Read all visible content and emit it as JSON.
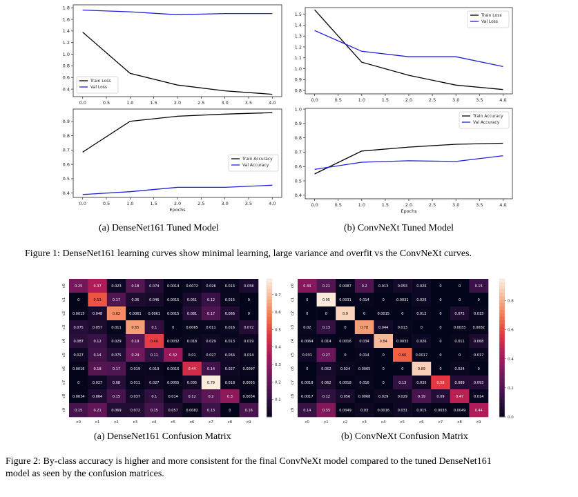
{
  "figure1": {
    "sub_a": "(a) DenseNet161 Tuned Model",
    "sub_b": "(b) ConvNeXt Tuned Model",
    "caption": "Figure 1: DenseNet161 learning curves show minimal learning, large variance and overfit vs the ConvNeXt curves."
  },
  "figure2": {
    "sub_a": "(a) DenseNet161 Confusion Matrix",
    "sub_b": "(b) ConvNeXt Confusion Matrix",
    "caption_line1": "Figure 2: By-class accuracy is higher and more consistent for the final ConvNeXt model compared to the tuned DenseNet161",
    "caption_line2": "model as seen by the confusion matrices."
  },
  "colors": {
    "train": "#000000",
    "val": "#1f1fd6"
  },
  "chart_data": [
    {
      "id": "dn-loss",
      "type": "line",
      "xlabel": "",
      "ylabel": "",
      "xlim": [
        -0.2,
        4.2
      ],
      "ylim": [
        0.27,
        1.85
      ],
      "xticks": [
        0.0,
        0.5,
        1.0,
        1.5,
        2.0,
        2.5,
        3.0,
        3.5,
        4.0
      ],
      "yticks": [
        0.4,
        0.6,
        0.8,
        1.0,
        1.2,
        1.4,
        1.6,
        1.8
      ],
      "legend_position": "lower-left",
      "x": [
        0,
        1,
        2,
        3,
        4
      ],
      "series": [
        {
          "name": "Train Loss",
          "values": [
            1.38,
            0.67,
            0.47,
            0.37,
            0.31
          ]
        },
        {
          "name": "Val Loss",
          "values": [
            1.76,
            1.73,
            1.68,
            1.7,
            1.7
          ]
        }
      ]
    },
    {
      "id": "cx-loss",
      "type": "line",
      "xlabel": "",
      "ylabel": "",
      "xlim": [
        -0.2,
        4.2
      ],
      "ylim": [
        0.77,
        1.56
      ],
      "xticks": [
        0.0,
        0.5,
        1.0,
        1.5,
        2.0,
        2.5,
        3.0,
        3.5,
        4.0
      ],
      "yticks": [
        0.8,
        0.9,
        1.0,
        1.1,
        1.2,
        1.3,
        1.4,
        1.5
      ],
      "legend_position": "upper-right",
      "x": [
        0,
        1,
        2,
        3,
        4
      ],
      "series": [
        {
          "name": "Train Loss",
          "values": [
            1.54,
            1.06,
            0.94,
            0.85,
            0.81
          ]
        },
        {
          "name": "Val Loss",
          "values": [
            1.35,
            1.16,
            1.11,
            1.11,
            1.02
          ]
        }
      ]
    },
    {
      "id": "dn-acc",
      "type": "line",
      "xlabel": "Epochs",
      "ylabel": "",
      "xlim": [
        -0.2,
        4.2
      ],
      "ylim": [
        0.37,
        0.985
      ],
      "xticks": [
        0.0,
        0.5,
        1.0,
        1.5,
        2.0,
        2.5,
        3.0,
        3.5,
        4.0
      ],
      "yticks": [
        0.4,
        0.5,
        0.6,
        0.7,
        0.8,
        0.9
      ],
      "legend_position": "center-right",
      "x": [
        0,
        1,
        2,
        3,
        4
      ],
      "series": [
        {
          "name": "Train Accuracy",
          "values": [
            0.685,
            0.9,
            0.935,
            0.95,
            0.96
          ]
        },
        {
          "name": "Val Accuracy",
          "values": [
            0.39,
            0.41,
            0.44,
            0.44,
            0.455
          ]
        }
      ]
    },
    {
      "id": "cx-acc",
      "type": "line",
      "xlabel": "Epochs",
      "ylabel": "",
      "xlim": [
        -0.2,
        4.2
      ],
      "ylim": [
        0.375,
        1.005
      ],
      "xticks": [
        0.0,
        0.5,
        1.0,
        1.5,
        2.0,
        2.5,
        3.0,
        3.5,
        4.0
      ],
      "yticks": [
        0.4,
        0.5,
        0.6,
        0.7,
        0.8,
        0.9,
        1.0
      ],
      "legend_position": "upper-right",
      "x": [
        0,
        1,
        2,
        3,
        4
      ],
      "series": [
        {
          "name": "Train Accuracy",
          "values": [
            0.548,
            0.708,
            0.735,
            0.755,
            0.762
          ]
        },
        {
          "name": "Val Accuracy",
          "values": [
            0.58,
            0.63,
            0.64,
            0.635,
            0.675
          ]
        }
      ]
    },
    {
      "id": "dn-cm",
      "type": "heatmap",
      "row_labels": [
        "c0",
        "c1",
        "c2",
        "c3",
        "c4",
        "c5",
        "c6",
        "c7",
        "c8",
        "c9"
      ],
      "col_labels": [
        "c0",
        "c1",
        "c2",
        "c3",
        "c4",
        "c5",
        "c6",
        "c7",
        "c8",
        "c9"
      ],
      "colorbar_ticks": [
        0.1,
        0.2,
        0.3,
        0.4,
        0.5,
        0.6,
        0.7
      ],
      "vmax": 0.79,
      "cells": [
        [
          "0.25",
          "0.37",
          "0.023",
          "0.18",
          "0.074",
          "0.0014",
          "0.0072",
          "0.026",
          "0.014",
          "0.058"
        ],
        [
          "0",
          "0.53",
          "0.17",
          "0.06",
          "0.046",
          "0.0015",
          "0.051",
          "0.12",
          "0.015",
          "0"
        ],
        [
          "0.0015",
          "0.048",
          "0.62",
          "0.0061",
          "0.0061",
          "0.0015",
          "0.081",
          "0.17",
          "0.066",
          "0"
        ],
        [
          "0.075",
          "0.057",
          "0.011",
          "0.65",
          "0.1",
          "0",
          "0.0065",
          "0.011",
          "0.016",
          "0.072"
        ],
        [
          "0.087",
          "0.12",
          "0.029",
          "0.19",
          "0.49",
          "0.0032",
          "0.018",
          "0.029",
          "0.013",
          "0.019"
        ],
        [
          "0.027",
          "0.14",
          "0.075",
          "0.24",
          "0.11",
          "0.32",
          "0.01",
          "0.027",
          "0.034",
          "0.014"
        ],
        [
          "0.0016",
          "0.18",
          "0.17",
          "0.019",
          "0.019",
          "0.0016",
          "0.44",
          "0.14",
          "0.027",
          "0.0097"
        ],
        [
          "0",
          "0.027",
          "0.08",
          "0.011",
          "0.027",
          "0.0055",
          "0.035",
          "0.79",
          "0.018",
          "0.0055"
        ],
        [
          "0.0034",
          "0.064",
          "0.15",
          "0.037",
          "0.1",
          "0.014",
          "0.12",
          "0.2",
          "0.3",
          "0.0034"
        ],
        [
          "0.15",
          "0.21",
          "0.069",
          "0.072",
          "0.15",
          "0.057",
          "0.0082",
          "0.13",
          "0",
          "0.16"
        ]
      ]
    },
    {
      "id": "cx-cm",
      "type": "heatmap",
      "row_labels": [
        "c0",
        "c1",
        "c2",
        "c3",
        "c4",
        "c5",
        "c6",
        "c7",
        "c8",
        "c9"
      ],
      "col_labels": [
        "c0",
        "c1",
        "c2",
        "c3",
        "c4",
        "c5",
        "c6",
        "c7",
        "c8",
        "c9"
      ],
      "colorbar_ticks": [
        0.0,
        0.2,
        0.4,
        0.6,
        0.8
      ],
      "vmax": 0.95,
      "cells": [
        [
          "0.34",
          "0.21",
          "0.0087",
          "0.2",
          "0.013",
          "0.053",
          "0.026",
          "0",
          "0",
          "0.15"
        ],
        [
          "0",
          "0.95",
          "0.0031",
          "0.014",
          "0",
          "0.0031",
          "0.026",
          "0",
          "0",
          "0"
        ],
        [
          "0",
          "0",
          "0.9",
          "0",
          "0.0015",
          "0",
          "0.012",
          "0",
          "0.075",
          "0.015"
        ],
        [
          "0.02",
          "0.13",
          "0",
          "0.78",
          "0.044",
          "0.013",
          "0",
          "0",
          "0.0033",
          "0.0082"
        ],
        [
          "0.0064",
          "0.014",
          "0.0016",
          "0.034",
          "0.84",
          "0.0032",
          "0.026",
          "0",
          "0.011",
          "0.068"
        ],
        [
          "0.031",
          "0.27",
          "0",
          "0.014",
          "0",
          "0.66",
          "0.0017",
          "0",
          "0",
          "0.017"
        ],
        [
          "0",
          "0.052",
          "0.024",
          "0.0065",
          "0",
          "0",
          "0.89",
          "0",
          "0.024",
          "0"
        ],
        [
          "0.0018",
          "0.062",
          "0.0018",
          "0.016",
          "0",
          "0.13",
          "0.035",
          "0.58",
          "0.089",
          "0.093"
        ],
        [
          "0.0017",
          "0.12",
          "0.056",
          "0.0068",
          "0.029",
          "0.029",
          "0.19",
          "0.09",
          "0.47",
          "0.014"
        ],
        [
          "0.14",
          "0.33",
          "0.0049",
          "0.03",
          "0.0016",
          "0.031",
          "0.015",
          "0.0033",
          "0.0049",
          "0.44"
        ]
      ]
    }
  ]
}
